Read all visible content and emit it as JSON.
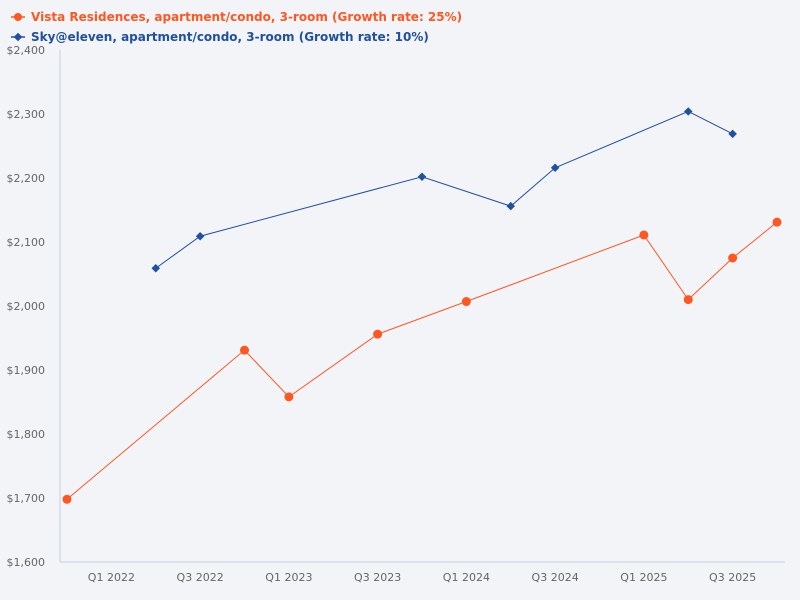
{
  "chart_data": {
    "type": "line",
    "title": "",
    "xlabel": "",
    "ylabel": "",
    "ylim": [
      1600,
      2400
    ],
    "grid": false,
    "legend_position": "top-left",
    "x": [
      "Q4 2021",
      "Q1 2022",
      "Q2 2022",
      "Q3 2022",
      "Q4 2022",
      "Q1 2023",
      "Q2 2023",
      "Q3 2023",
      "Q4 2023",
      "Q1 2024",
      "Q2 2024",
      "Q3 2024",
      "Q4 2024",
      "Q1 2025",
      "Q2 2025",
      "Q3 2025",
      "Q4 2025"
    ],
    "x_tick_labels": [
      "Q1 2022",
      "Q3 2022",
      "Q1 2023",
      "Q3 2023",
      "Q1 2024",
      "Q3 2024",
      "Q1 2025",
      "Q3 2025"
    ],
    "y_tick_labels": [
      "$1,600",
      "$1,700",
      "$1,800",
      "$1,900",
      "$2,000",
      "$2,100",
      "$2,200",
      "$2,300",
      "$2,400"
    ],
    "y_ticks": [
      1600,
      1700,
      1800,
      1900,
      2000,
      2100,
      2200,
      2300,
      2400
    ],
    "series": [
      {
        "name": "Vista Residences, apartment/condo, 3-room (Growth rate: 25%)",
        "color": "#ff5722",
        "marker": "circle",
        "values": [
          1698,
          null,
          null,
          null,
          1931,
          1858,
          null,
          1956,
          null,
          2007,
          null,
          null,
          null,
          2111,
          2010,
          2075,
          2131
        ]
      },
      {
        "name": "Sky@eleven, apartment/condo, 3-room (Growth rate: 10%)",
        "color": "#2050a0",
        "marker": "diamond",
        "values": [
          null,
          null,
          2059,
          2109,
          null,
          null,
          null,
          null,
          2202,
          null,
          2156,
          2216,
          null,
          null,
          2304,
          2269,
          null
        ]
      }
    ]
  }
}
